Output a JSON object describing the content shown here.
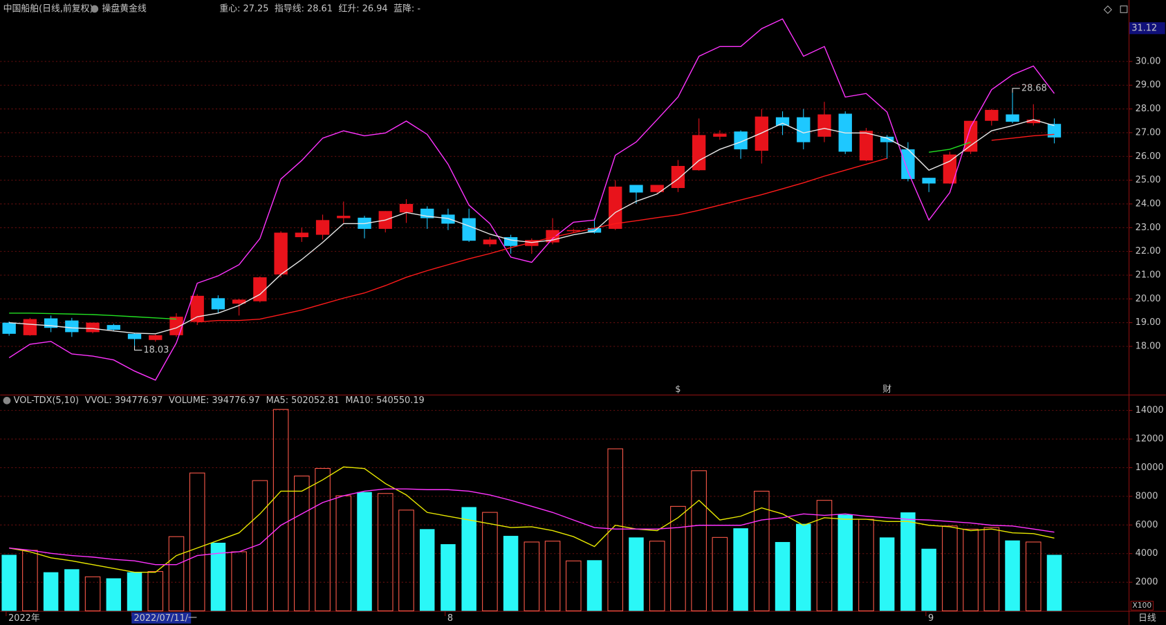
{
  "header": {
    "title": "中国船舶(日线,前复权)",
    "indicator": "操盘黄金线"
  },
  "chart_data": [
    {
      "type": "candlestick",
      "legend": [
        {
          "text": "重心: 27.25",
          "color": "#ffffff"
        },
        {
          "text": "指导线: 28.61",
          "color": "#ff33ff"
        },
        {
          "text": "红升: 26.94",
          "color": "#ff3030"
        },
        {
          "text": "蓝降: -",
          "color": "#30ff30"
        }
      ],
      "open": [
        19.0,
        18.47,
        19.18,
        19.09,
        18.6,
        18.9,
        18.53,
        18.27,
        18.47,
        19.03,
        20.03,
        19.8,
        19.9,
        21.03,
        22.6,
        22.7,
        23.4,
        23.42,
        22.95,
        23.64,
        23.8,
        23.55,
        23.4,
        22.3,
        22.6,
        22.23,
        22.38,
        22.85,
        22.98,
        22.95,
        24.8,
        24.5,
        24.67,
        25.42,
        26.83,
        27.05,
        26.24,
        27.65,
        27.65,
        26.83,
        27.8,
        25.83,
        26.83,
        26.3,
        25.1,
        24.86,
        26.2,
        27.5,
        27.77,
        27.4,
        27.37
      ],
      "high": [
        19.05,
        19.2,
        19.3,
        19.2,
        19.0,
        18.95,
        18.55,
        18.5,
        19.4,
        20.2,
        20.15,
        20.0,
        20.95,
        22.85,
        23.0,
        23.55,
        24.1,
        23.5,
        23.7,
        24.2,
        23.9,
        23.8,
        23.8,
        22.6,
        22.7,
        22.55,
        23.4,
        22.95,
        23.4,
        25.0,
        24.8,
        24.8,
        25.85,
        27.6,
        27.1,
        27.1,
        28.0,
        27.9,
        28.0,
        28.3,
        27.9,
        27.2,
        26.9,
        26.6,
        25.1,
        26.2,
        27.5,
        28.0,
        28.68,
        28.2,
        27.6
      ],
      "low": [
        18.45,
        18.45,
        18.6,
        18.4,
        18.55,
        18.65,
        18.03,
        18.2,
        18.4,
        18.9,
        19.4,
        19.3,
        19.85,
        20.9,
        22.4,
        22.5,
        23.2,
        22.55,
        22.8,
        23.2,
        22.95,
        22.9,
        22.4,
        22.2,
        21.9,
        21.9,
        22.3,
        22.8,
        22.75,
        22.9,
        24.0,
        24.45,
        24.5,
        25.4,
        26.7,
        25.9,
        25.7,
        26.9,
        26.3,
        26.6,
        26.1,
        25.8,
        25.9,
        24.95,
        24.5,
        24.85,
        26.1,
        27.3,
        27.4,
        27.3,
        26.55
      ],
      "close": [
        18.53,
        19.15,
        18.78,
        18.6,
        19.0,
        18.7,
        18.31,
        18.47,
        19.25,
        20.13,
        19.56,
        19.97,
        20.91,
        22.79,
        22.79,
        23.32,
        23.5,
        22.95,
        23.7,
        24.0,
        23.4,
        23.17,
        22.45,
        22.5,
        22.23,
        22.48,
        22.9,
        22.9,
        22.79,
        24.73,
        24.48,
        24.8,
        25.6,
        26.9,
        26.96,
        26.3,
        27.68,
        27.3,
        26.6,
        27.77,
        26.2,
        27.08,
        26.6,
        25.05,
        24.86,
        26.08,
        27.5,
        27.96,
        27.46,
        27.55,
        26.8
      ],
      "up_color": "#e8131b",
      "down_color": "#1ec8ff",
      "overlays": [
        {
          "color": "#ff33ff",
          "values": [
            17.52,
            18.09,
            18.21,
            17.68,
            17.59,
            17.43,
            16.96,
            16.58,
            18.15,
            20.66,
            20.97,
            21.44,
            22.54,
            25.05,
            25.83,
            26.77,
            27.08,
            26.87,
            26.99,
            27.49,
            26.93,
            25.67,
            23.95,
            23.17,
            21.76,
            21.54,
            22.54,
            23.23,
            23.32,
            26.05,
            26.61,
            27.55,
            28.5,
            30.22,
            30.63,
            30.63,
            31.38,
            31.79,
            30.22,
            30.63,
            28.5,
            28.65,
            27.87,
            25.36,
            23.32,
            24.48,
            27.24,
            28.81,
            29.44,
            29.81,
            28.65
          ]
        },
        {
          "color": "#ff1a1a",
          "values": [
            null,
            null,
            null,
            null,
            null,
            null,
            null,
            null,
            null,
            19.03,
            19.09,
            19.09,
            19.15,
            19.34,
            19.53,
            19.78,
            20.03,
            20.25,
            20.56,
            20.91,
            21.19,
            21.44,
            21.69,
            21.91,
            22.16,
            22.38,
            22.6,
            22.79,
            22.98,
            23.17,
            23.29,
            23.42,
            23.54,
            23.73,
            23.95,
            24.17,
            24.39,
            24.64,
            24.89,
            25.17,
            25.42,
            25.67,
            25.92,
            null,
            null,
            null,
            null,
            26.68,
            26.77,
            26.87,
            26.93
          ]
        },
        {
          "color": "#22e022",
          "values": [
            19.4,
            19.4,
            19.38,
            19.36,
            19.34,
            19.3,
            19.25,
            19.2,
            19.15,
            null,
            null,
            null,
            null,
            null,
            null,
            null,
            null,
            null,
            null,
            null,
            null,
            null,
            null,
            null,
            null,
            null,
            null,
            null,
            null,
            null,
            null,
            null,
            null,
            null,
            null,
            null,
            null,
            null,
            null,
            null,
            null,
            null,
            null,
            null,
            26.18,
            26.3,
            26.6,
            null,
            null,
            null,
            null
          ]
        },
        {
          "color": "#e8e8e8",
          "values": [
            19.0,
            18.93,
            18.87,
            18.78,
            18.75,
            18.65,
            18.56,
            18.53,
            18.78,
            19.25,
            19.4,
            19.72,
            20.19,
            21.03,
            21.66,
            22.38,
            23.17,
            23.17,
            23.32,
            23.64,
            23.48,
            23.39,
            23.07,
            22.73,
            22.48,
            22.38,
            22.48,
            22.7,
            22.85,
            23.64,
            24.11,
            24.42,
            25.05,
            25.83,
            26.3,
            26.61,
            26.99,
            27.4,
            26.99,
            27.18,
            26.99,
            26.99,
            26.77,
            26.3,
            25.42,
            25.8,
            26.46,
            27.08,
            27.3,
            27.55,
            27.3
          ]
        }
      ],
      "event_labels": [
        null,
        null,
        null,
        null,
        null,
        null,
        null,
        null,
        null,
        null,
        null,
        null,
        null,
        null,
        null,
        null,
        null,
        null,
        null,
        null,
        null,
        null,
        null,
        null,
        null,
        null,
        null,
        null,
        null,
        null,
        null,
        null,
        "$",
        null,
        null,
        null,
        null,
        null,
        null,
        null,
        null,
        null,
        "财",
        null,
        null,
        null,
        null,
        null,
        null,
        null,
        null
      ],
      "top_price": 31.12,
      "ylim": [
        16.0,
        31.9
      ],
      "yticks": [
        {
          "value": 18,
          "label": "18.00"
        },
        {
          "value": 19,
          "label": "19.00"
        },
        {
          "value": 20,
          "label": "20.00"
        },
        {
          "value": 21,
          "label": "21.00"
        },
        {
          "value": 22,
          "label": "22.00"
        },
        {
          "value": 23,
          "label": "23.00"
        },
        {
          "value": 24,
          "label": "24.00"
        },
        {
          "value": 25,
          "label": "25.00"
        },
        {
          "value": 26,
          "label": "26.00"
        },
        {
          "value": 27,
          "label": "27.00"
        },
        {
          "value": 28,
          "label": "28.00"
        },
        {
          "value": 29,
          "label": "29.00"
        },
        {
          "value": 30,
          "label": "30.00"
        }
      ],
      "grid": true
    },
    {
      "type": "bar",
      "legend": [
        {
          "text": "VOL-TDX(5,10)",
          "color": "#d8d8d8"
        },
        {
          "text": "VVOL: 394776.97",
          "color": "#d8d8d8"
        },
        {
          "text": "VOLUME: 394776.97",
          "color": "#e8e800"
        },
        {
          "text": "MA5: 502052.81",
          "color": "#e8e800"
        },
        {
          "text": "MA10: 540550.19",
          "color": "#ff33ff"
        }
      ],
      "categories": [
        "2022年",
        null,
        null,
        null,
        null,
        null,
        "2022/07/11/一",
        null,
        null,
        null,
        null,
        null,
        null,
        null,
        null,
        null,
        null,
        null,
        null,
        null,
        null,
        "8",
        null,
        null,
        null,
        null,
        null,
        null,
        null,
        null,
        null,
        null,
        null,
        null,
        null,
        null,
        null,
        null,
        null,
        null,
        null,
        null,
        null,
        null,
        "9",
        null,
        null,
        null,
        null,
        null,
        null
      ],
      "values": [
        3915,
        4230,
        2700,
        2910,
        2380,
        2275,
        2700,
        2750,
        5185,
        9630,
        4760,
        4130,
        9100,
        14070,
        9420,
        9950,
        8040,
        8300,
        8200,
        7040,
        5710,
        4660,
        7250,
        6880,
        5240,
        4810,
        4870,
        3490,
        3540,
        11320,
        5130,
        4870,
        7300,
        9790,
        5130,
        5770,
        8360,
        4810,
        6080,
        7720,
        6720,
        6400,
        5130,
        6880,
        4340,
        5930,
        5710,
        5820,
        4920,
        4810,
        3915
      ],
      "up_color": "#ff5a4a",
      "down_color": "#2af7f7",
      "overlays": [
        {
          "color": "#e8e800",
          "values": [
            4392,
            4127,
            3704,
            3492,
            3228,
            2963,
            2698,
            2698,
            3862,
            4392,
            4921,
            5450,
            6772,
            8360,
            8360,
            9153,
            10053,
            9947,
            8889,
            8095,
            6878,
            6614,
            6349,
            6085,
            5820,
            5873,
            5608,
            5185,
            4497,
            5979,
            5714,
            5608,
            6508,
            7725,
            6349,
            6614,
            7196,
            6772,
            5979,
            6508,
            6402,
            6402,
            6243,
            6243,
            5979,
            5873,
            5608,
            5714,
            5450,
            5397,
            5079
          ]
        },
        {
          "color": "#ff33ff",
          "values": [
            4392,
            4233,
            4021,
            3862,
            3757,
            3598,
            3492,
            3228,
            3228,
            3862,
            4021,
            4127,
            4656,
            5979,
            6772,
            7566,
            8042,
            8360,
            8519,
            8519,
            8466,
            8466,
            8360,
            8095,
            7725,
            7302,
            6878,
            6349,
            5820,
            5714,
            5714,
            5714,
            5820,
            5979,
            5979,
            5979,
            6349,
            6508,
            6772,
            6667,
            6772,
            6614,
            6508,
            6402,
            6349,
            6243,
            6138,
            5979,
            5926,
            5714,
            5503
          ]
        }
      ],
      "unit_label": "X100",
      "period_label": "日线",
      "ylim": [
        0,
        15000
      ],
      "yticks": [
        2000,
        4000,
        6000,
        8000,
        10000,
        12000,
        14000
      ],
      "grid": true
    }
  ]
}
